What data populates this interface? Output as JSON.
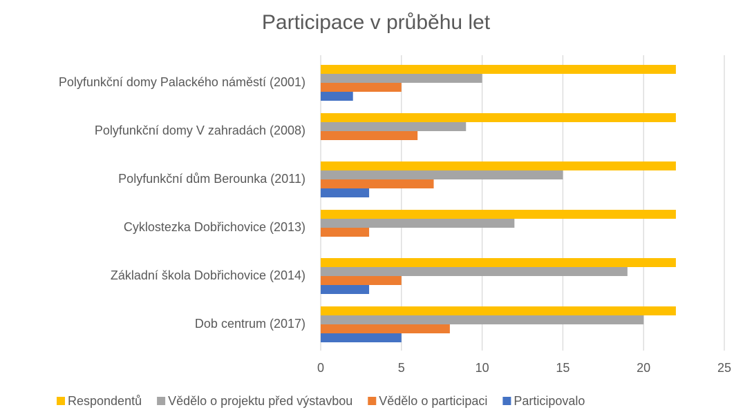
{
  "chart_data": {
    "type": "bar",
    "orientation": "horizontal",
    "title": "Participace v průběhu let",
    "categories": [
      "Polyfunkční domy Palackého náměstí (2001)",
      "Polyfunkční domy V zahradách (2008)",
      "Polyfunkční dům Berounka (2011)",
      "Cyklostezka Dobřichovice (2013)",
      "Základní škola Dobřichovice (2014)",
      "Dob centrum (2017)"
    ],
    "series": [
      {
        "name": "Respondentů",
        "color": "#ffc000",
        "values": [
          22,
          22,
          22,
          22,
          22,
          22
        ]
      },
      {
        "name": "Vědělo o projektu před výstavbou",
        "color": "#a5a5a5",
        "values": [
          10,
          9,
          15,
          12,
          19,
          20
        ]
      },
      {
        "name": "Vědělo o participaci",
        "color": "#ed7d31",
        "values": [
          5,
          6,
          7,
          3,
          5,
          8
        ]
      },
      {
        "name": "Participovalo",
        "color": "#4472c4",
        "values": [
          2,
          0,
          3,
          0,
          3,
          5
        ]
      }
    ],
    "xlim": [
      0,
      25
    ],
    "xticks": [
      0,
      5,
      10,
      15,
      20,
      25
    ],
    "grid": true,
    "legend": "bottom"
  }
}
